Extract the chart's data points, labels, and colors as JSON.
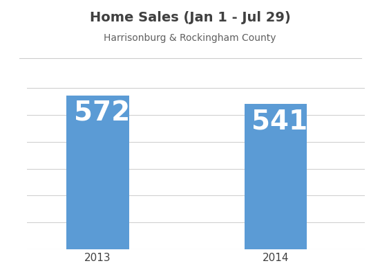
{
  "title": "Home Sales (Jan 1 - Jul 29)",
  "subtitle": "Harrisonburg & Rockingham County",
  "categories": [
    "2013",
    "2014"
  ],
  "values": [
    572,
    541
  ],
  "bar_color": "#5B9BD5",
  "bar_labels_color": "#ffffff",
  "title_color": "#404040",
  "subtitle_color": "#606060",
  "title_fontsize": 14,
  "subtitle_fontsize": 10,
  "bar_label_fontsize": 28,
  "background_color": "#ffffff",
  "ylim": [
    0,
    680
  ],
  "grid_color": "#d0d0d0",
  "bar_width": 0.35,
  "tick_label_color": "#404040",
  "tick_label_fontsize": 11,
  "x_positions": [
    0.5,
    1.5
  ],
  "xlim": [
    0.1,
    2.0
  ],
  "grid_vals": [
    0,
    100,
    200,
    300,
    400,
    500,
    600
  ]
}
